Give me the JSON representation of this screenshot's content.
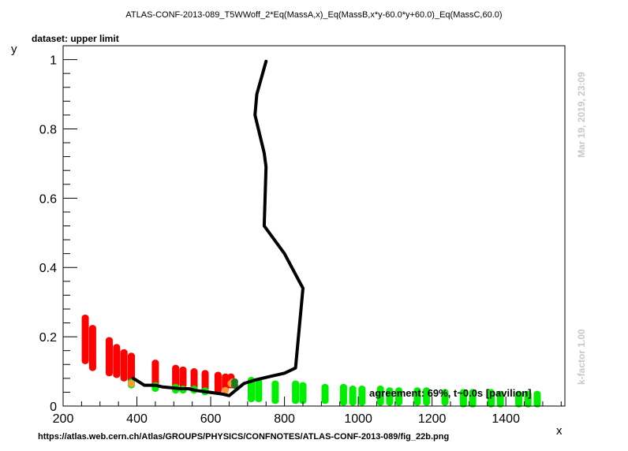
{
  "header": {
    "title": "ATLAS-CONF-2013-089_T5WWoff_2*Eq(MassA,x)_Eq(MassB,x*y-60.0*y+60.0)_Eq(MassC,60.0)",
    "subtitle": "dataset: upper limit"
  },
  "footer": {
    "url": "https://atlas.web.cern.ch/Atlas/GROUPS/PHYSICS/CONFNOTES/ATLAS-CONF-2013-089/fig_22b.png"
  },
  "side": {
    "timestamp": "Mar 19, 2019, 23:09",
    "kfactor": "k-factor 1.00"
  },
  "annotation": {
    "agreement": "agreement: 69%, t~0.0s [pavilion]"
  },
  "chart_data": {
    "type": "scatter",
    "xlabel": "x",
    "ylabel": "y",
    "xlim": [
      200,
      1560
    ],
    "ylim": [
      0,
      1.04
    ],
    "x_ticks": [
      200,
      400,
      600,
      800,
      1000,
      1200,
      1400
    ],
    "y_ticks": [
      0,
      0.2,
      0.4,
      0.6,
      0.8,
      1
    ],
    "x_tick_labels": [
      "200",
      "400",
      "600",
      "800",
      "1000",
      "1200",
      "1400"
    ],
    "y_tick_labels": [
      "0",
      "0.2",
      "0.4",
      "0.6",
      "0.8",
      "1"
    ],
    "grid": false,
    "colors": {
      "excluded": "#ff0000",
      "allowed": "#00ee00",
      "border": "#ff9933",
      "dark": "#227722",
      "line": "#000000"
    },
    "series": [
      {
        "color_key": "excluded",
        "columns": [
          {
            "x": 260,
            "y": [
              0.13,
              0.255
            ]
          },
          {
            "x": 280,
            "y": [
              0.11,
              0.225
            ]
          },
          {
            "x": 325,
            "y": [
              0.095,
              0.19
            ]
          },
          {
            "x": 345,
            "y": [
              0.09,
              0.17
            ]
          },
          {
            "x": 365,
            "y": [
              0.08,
              0.155
            ]
          },
          {
            "x": 385,
            "y": [
              0.075,
              0.145
            ]
          },
          {
            "x": 450,
            "y": [
              0.065,
              0.125
            ]
          },
          {
            "x": 505,
            "y": [
              0.06,
              0.11
            ]
          },
          {
            "x": 525,
            "y": [
              0.06,
              0.105
            ]
          },
          {
            "x": 555,
            "y": [
              0.055,
              0.1
            ]
          },
          {
            "x": 585,
            "y": [
              0.05,
              0.095
            ]
          },
          {
            "x": 620,
            "y": [
              0.045,
              0.09
            ]
          },
          {
            "x": 640,
            "y": [
              0.05,
              0.085
            ]
          },
          {
            "x": 655,
            "y": [
              0.06,
              0.085
            ]
          }
        ]
      },
      {
        "color_key": "allowed",
        "columns": [
          {
            "x": 385,
            "y": [
              0.06,
              0.07
            ]
          },
          {
            "x": 450,
            "y": [
              0.05,
              0.06
            ]
          },
          {
            "x": 505,
            "y": [
              0.045,
              0.055
            ]
          },
          {
            "x": 525,
            "y": [
              0.045,
              0.05
            ]
          },
          {
            "x": 555,
            "y": [
              0.045,
              0.05
            ]
          },
          {
            "x": 585,
            "y": [
              0.04,
              0.045
            ]
          },
          {
            "x": 710,
            "y": [
              0.02,
              0.075
            ]
          },
          {
            "x": 730,
            "y": [
              0.02,
              0.07
            ]
          },
          {
            "x": 775,
            "y": [
              0.015,
              0.065
            ]
          },
          {
            "x": 830,
            "y": [
              0.015,
              0.065
            ]
          },
          {
            "x": 850,
            "y": [
              0.015,
              0.06
            ]
          },
          {
            "x": 910,
            "y": [
              0.015,
              0.055
            ]
          },
          {
            "x": 960,
            "y": [
              0.01,
              0.055
            ]
          },
          {
            "x": 985,
            "y": [
              0.01,
              0.05
            ]
          },
          {
            "x": 1010,
            "y": [
              0.01,
              0.05
            ]
          },
          {
            "x": 1060,
            "y": [
              0.01,
              0.05
            ]
          },
          {
            "x": 1085,
            "y": [
              0.01,
              0.045
            ]
          },
          {
            "x": 1110,
            "y": [
              0.01,
              0.045
            ]
          },
          {
            "x": 1160,
            "y": [
              0.01,
              0.045
            ]
          },
          {
            "x": 1185,
            "y": [
              0.01,
              0.045
            ]
          },
          {
            "x": 1235,
            "y": [
              0.01,
              0.04
            ]
          },
          {
            "x": 1285,
            "y": [
              0.005,
              0.04
            ]
          },
          {
            "x": 1310,
            "y": [
              0.005,
              0.04
            ]
          },
          {
            "x": 1360,
            "y": [
              0.005,
              0.04
            ]
          },
          {
            "x": 1385,
            "y": [
              0.005,
              0.035
            ]
          },
          {
            "x": 1435,
            "y": [
              0.005,
              0.035
            ]
          },
          {
            "x": 1460,
            "y": [
              0.005,
              0.035
            ]
          },
          {
            "x": 1485,
            "y": [
              0.005,
              0.035
            ]
          }
        ]
      }
    ],
    "points": [
      {
        "x": 385,
        "y": 0.065,
        "color_key": "border"
      },
      {
        "x": 640,
        "y": 0.045,
        "color_key": "border"
      },
      {
        "x": 655,
        "y": 0.065,
        "color_key": "border"
      },
      {
        "x": 660,
        "y": 0.07,
        "color_key": "border"
      },
      {
        "x": 665,
        "y": 0.07,
        "color_key": "dark"
      },
      {
        "x": 665,
        "y": 0.06,
        "color_key": "dark"
      }
    ],
    "exclusion_line": {
      "x": [
        750,
        725,
        720,
        745,
        750,
        745,
        800,
        820,
        850,
        830,
        800,
        760,
        720,
        690,
        650,
        630,
        560,
        540,
        520,
        470,
        450,
        420,
        390
      ],
      "y": [
        0.995,
        0.9,
        0.84,
        0.73,
        0.69,
        0.52,
        0.44,
        0.4,
        0.34,
        0.11,
        0.095,
        0.085,
        0.075,
        0.065,
        0.03,
        0.035,
        0.045,
        0.05,
        0.05,
        0.055,
        0.06,
        0.06,
        0.08
      ]
    }
  }
}
